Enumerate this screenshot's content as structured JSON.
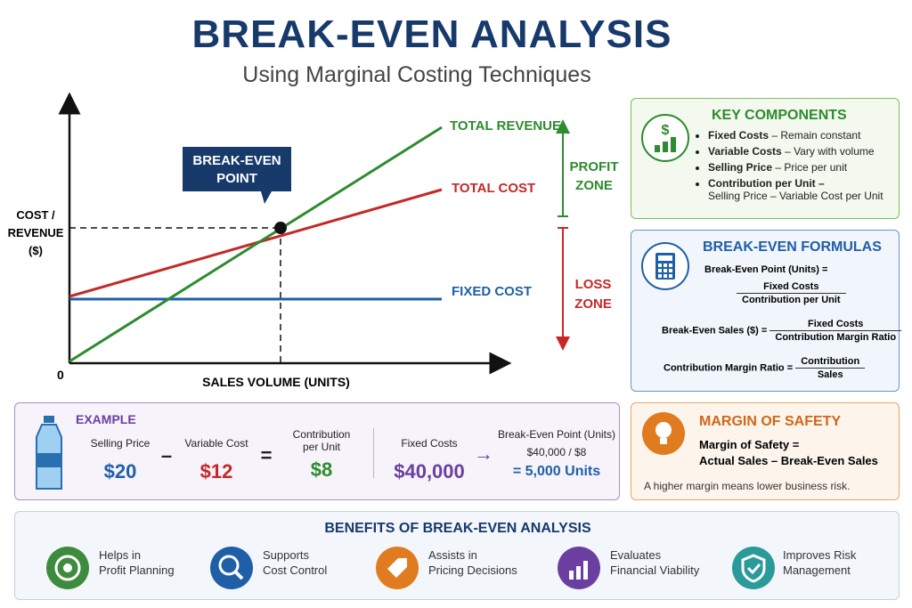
{
  "header": {
    "title": "BREAK-EVEN ANALYSIS",
    "subtitle": "Using Marginal Costing Techniques"
  },
  "graph": {
    "y_label": [
      "COST /",
      "REVENUE",
      "($)"
    ],
    "x_label": "SALES VOLUME (UNITS)",
    "origin": "0",
    "break_even": [
      "BREAK-EVEN",
      "POINT"
    ],
    "total_revenue": "TOTAL REVENUE",
    "total_cost": "TOTAL COST",
    "fixed_cost": "FIXED COST",
    "profit_zone": [
      "PROFIT",
      "ZONE"
    ],
    "loss_zone": [
      "LOSS",
      "ZONE"
    ]
  },
  "key_components": {
    "title": "KEY COMPONENTS",
    "items": [
      {
        "term": "Fixed Costs",
        "desc": "– Remain constant"
      },
      {
        "term": "Variable Costs",
        "desc": "– Vary with volume"
      },
      {
        "term": "Selling Price",
        "desc": "– Price per unit"
      },
      {
        "term": "Contribution per Unit –",
        "desc": "Selling Price – Variable Cost per Unit"
      }
    ]
  },
  "formulas": {
    "title": "BREAK-EVEN FORMULAS",
    "items": [
      {
        "lhs": "Break-Even Point (Units) =",
        "numerator": "Fixed Costs",
        "denominator": "Contribution per Unit"
      },
      {
        "lhs": "Break-Even Sales ($) =",
        "numerator": "Fixed Costs",
        "denominator": "Contribution Margin Ratio"
      },
      {
        "lhs": "Contribution Margin Ratio =",
        "numerator": "Contribution",
        "denominator": "Sales"
      }
    ]
  },
  "margin_of_safety": {
    "title": "MARGIN OF SAFETY",
    "formula": [
      "Margin of Safety =",
      "Actual Sales – Break-Even Sales"
    ],
    "note": "A higher margin means lower business risk."
  },
  "example": {
    "title": "EXAMPLE",
    "selling_price": {
      "label": "Selling Price",
      "value": "$20"
    },
    "variable_cost": {
      "label": "Variable Cost",
      "value": "$12"
    },
    "contribution": {
      "label": "Contribution per Unit",
      "value": "$8"
    },
    "fixed_costs": {
      "label": "Fixed Costs",
      "value": "$40,000"
    },
    "break_even": {
      "label": "Break-Even Point (Units)",
      "calc": "$40,000 / $8",
      "result": "= 5,000 Units"
    },
    "ops": [
      "–",
      "=",
      "→"
    ]
  },
  "benefits": {
    "title": "BENEFITS OF BREAK-EVEN ANALYSIS",
    "items": [
      [
        "Helps in",
        "Profit Planning"
      ],
      [
        "Supports",
        "Cost Control"
      ],
      [
        "Assists in",
        "Pricing Decisions"
      ],
      [
        "Evaluates",
        "Financial Viability"
      ],
      [
        "Improves Risk",
        "Management"
      ]
    ]
  }
}
